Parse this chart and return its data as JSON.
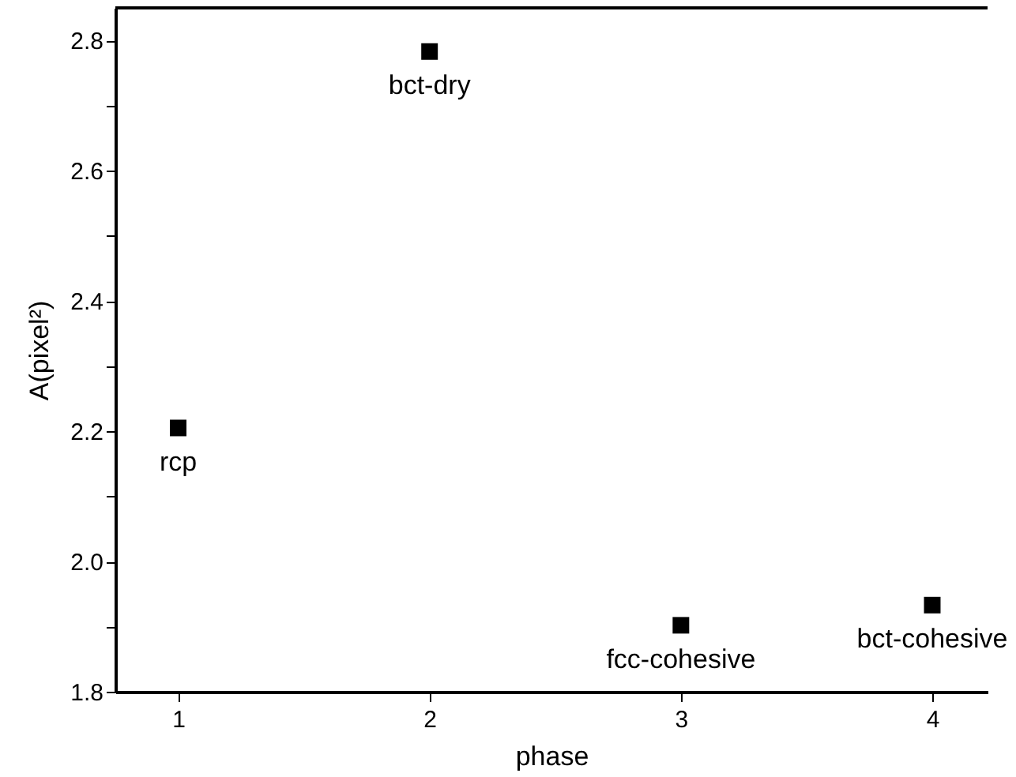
{
  "chart_data": {
    "type": "scatter",
    "xlabel": "phase",
    "ylabel": "A(pixel²)",
    "x": [
      1,
      2,
      3,
      4
    ],
    "series": [
      {
        "color": "#000000",
        "values": [
          2.205,
          2.783,
          1.902,
          1.933
        ]
      }
    ],
    "marker": "square",
    "xlim": [
      0.75,
      4.22
    ],
    "xticks": [
      1,
      2,
      3,
      4
    ],
    "ylim": [
      1.8,
      2.85
    ],
    "yticks": [
      1.8,
      {
        "value": 1.9,
        "label": null
      },
      {
        "value": 2.0,
        "label": "2.0"
      },
      {
        "value": 2.1,
        "label": null
      },
      2.2,
      {
        "value": 2.3,
        "label": null
      },
      2.4,
      {
        "value": 2.5,
        "label": null
      },
      2.6,
      {
        "value": 2.7,
        "label": null
      },
      2.8
    ],
    "annotations": [
      {
        "text": "rcp",
        "x": 1,
        "y": 2.205
      },
      {
        "text": "bct-dry",
        "x": 2,
        "y": 2.783
      },
      {
        "text": "fcc-cohesive",
        "x": 3,
        "y": 1.902
      },
      {
        "text": "bct-cohesive",
        "x": 4,
        "y": 1.933
      }
    ],
    "grid": false
  }
}
